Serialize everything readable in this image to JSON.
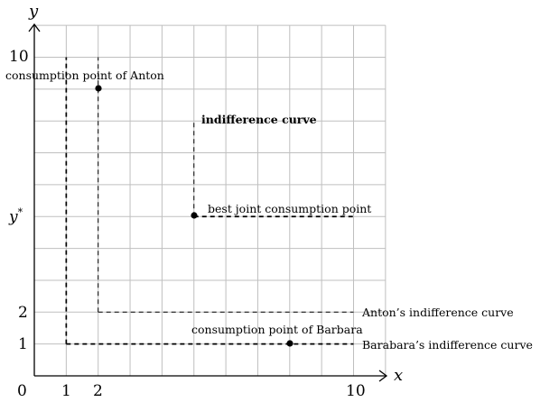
{
  "axes": {
    "x_name": "x",
    "y_name": "y",
    "origin_label": "0",
    "x_ticks": [
      "1",
      "2",
      "10"
    ],
    "y_ticks": [
      "10",
      "2",
      "1"
    ],
    "y_star_label": "y",
    "y_star_superscript": "*"
  },
  "annotations": {
    "anton_point": "consumption point of Anton",
    "barbara_point": "consumption point of Barbara",
    "indifference_curve": "indifference curve",
    "best_joint": "best joint consumption point",
    "anton_curve": "Anton’s indifference curve",
    "barbara_curve": "Barabara’s indifference curve"
  },
  "chart_data": {
    "type": "diagram",
    "xlim": [
      0,
      11
    ],
    "ylim": [
      0,
      11
    ],
    "grid": true,
    "points": [
      {
        "label": "consumption point of Anton",
        "x": 2,
        "y": 9
      },
      {
        "label": "consumption point of Barbara",
        "x": 8,
        "y": 1
      },
      {
        "label": "best joint consumption point",
        "x": 5,
        "y": 5
      }
    ],
    "curves": [
      {
        "label": "Anton’s indifference curve",
        "corner": [
          2,
          2
        ],
        "vertical_to_y": 10,
        "horizontal_to_x": 10
      },
      {
        "label": "Barabara’s indifference curve",
        "corner": [
          1,
          1
        ],
        "vertical_to_y": 10,
        "horizontal_to_x": 10
      },
      {
        "label": "indifference curve",
        "corner": [
          5,
          5
        ],
        "vertical_to_y": 8,
        "horizontal_to_x": 10
      }
    ],
    "colors": {
      "grid": "#bfbfbf",
      "ink": "#000000"
    }
  }
}
